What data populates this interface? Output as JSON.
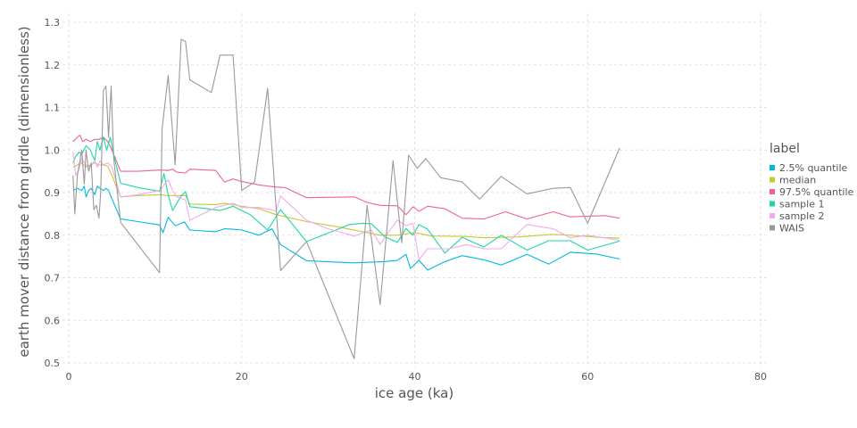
{
  "chart_data": {
    "type": "line",
    "xlabel": "ice age (ka)",
    "ylabel": "earth mover distance from girdle (dimensionless)",
    "xlim": [
      0,
      80
    ],
    "ylim": [
      0.5,
      1.32
    ],
    "xticks": [
      0,
      20,
      40,
      60,
      80
    ],
    "yticks": [
      0.5,
      0.6,
      0.7,
      0.8,
      0.9,
      1.0,
      1.1,
      1.2,
      1.3
    ],
    "xtick_labels": [
      "0",
      "20",
      "40",
      "60",
      "80"
    ],
    "ytick_labels": [
      "0.5",
      "0.6",
      "0.7",
      "0.8",
      "0.9",
      "1.0",
      "1.1",
      "1.2",
      "1.3"
    ],
    "grid": true,
    "legend": {
      "title": "label",
      "position": "right"
    },
    "series": [
      {
        "name": "2.5% quantile",
        "color": "#00b8e0",
        "x": [
          0.5,
          1.0,
          1.5,
          1.8,
          2.0,
          2.3,
          2.6,
          3.0,
          3.3,
          3.6,
          4.0,
          4.3,
          4.6,
          5.0,
          6.0,
          8.0,
          10.5,
          10.9,
          11.5,
          12.3,
          13.4,
          14.0,
          17.0,
          18.0,
          19.0,
          20.0,
          22.0,
          23.5,
          24.5,
          27.5,
          33.0,
          35.5,
          36.5,
          38.0,
          39.0,
          39.5,
          40.5,
          41.5,
          43.5,
          45.5,
          48.0,
          50.0,
          53.0,
          55.5,
          58.0,
          61.0,
          63.7
        ],
        "y": [
          0.905,
          0.91,
          0.905,
          0.915,
          0.89,
          0.905,
          0.91,
          0.895,
          0.915,
          0.91,
          0.905,
          0.91,
          0.905,
          0.885,
          0.838,
          0.832,
          0.824,
          0.806,
          0.842,
          0.822,
          0.831,
          0.812,
          0.808,
          0.815,
          0.814,
          0.812,
          0.8,
          0.815,
          0.778,
          0.74,
          0.735,
          0.737,
          0.738,
          0.741,
          0.755,
          0.722,
          0.741,
          0.718,
          0.738,
          0.752,
          0.742,
          0.73,
          0.755,
          0.732,
          0.76,
          0.756,
          0.744
        ]
      },
      {
        "name": "median",
        "color": "#c8c832",
        "x": [
          0.5,
          1.0,
          1.5,
          2.0,
          2.5,
          3.0,
          3.5,
          4.0,
          4.5,
          5.0,
          6.0,
          8.0,
          10.5,
          11.5,
          13.5,
          14.0,
          17.0,
          18.0,
          20.0,
          22.0,
          24.0,
          27.5,
          31.0,
          34.0,
          36.0,
          38.0,
          40.0,
          42.0,
          46.0,
          48.0,
          52.0,
          56.0,
          58.0,
          62.0,
          63.7
        ],
        "y": [
          0.96,
          0.965,
          0.97,
          0.96,
          0.965,
          0.97,
          0.965,
          0.965,
          0.962,
          0.94,
          0.89,
          0.893,
          0.895,
          0.893,
          0.893,
          0.873,
          0.872,
          0.875,
          0.868,
          0.862,
          0.848,
          0.832,
          0.82,
          0.808,
          0.8,
          0.8,
          0.806,
          0.798,
          0.797,
          0.794,
          0.796,
          0.802,
          0.8,
          0.794,
          0.793
        ]
      },
      {
        "name": "97.5% quantile",
        "color": "#f0609a",
        "x": [
          0.5,
          1.0,
          1.3,
          1.6,
          2.0,
          2.5,
          3.0,
          3.5,
          4.0,
          4.5,
          5.0,
          6.0,
          8.0,
          10.5,
          11.5,
          12.0,
          12.5,
          13.5,
          14.0,
          17.0,
          18.0,
          19.0,
          20.0,
          22.0,
          24.0,
          25.0,
          27.5,
          33.0,
          34.5,
          36.0,
          38.0,
          39.0,
          39.8,
          40.5,
          41.5,
          43.5,
          45.5,
          48.0,
          50.5,
          53.0,
          56.0,
          58.0,
          62.0,
          63.7
        ],
        "y": [
          1.02,
          1.03,
          1.035,
          1.02,
          1.025,
          1.02,
          1.025,
          1.025,
          1.03,
          1.02,
          1.0,
          0.95,
          0.95,
          0.953,
          0.952,
          0.955,
          0.948,
          0.946,
          0.955,
          0.952,
          0.925,
          0.932,
          0.926,
          0.918,
          0.913,
          0.912,
          0.888,
          0.89,
          0.877,
          0.87,
          0.869,
          0.848,
          0.867,
          0.856,
          0.868,
          0.862,
          0.84,
          0.838,
          0.855,
          0.838,
          0.855,
          0.843,
          0.846,
          0.84
        ]
      },
      {
        "name": "sample 1",
        "color": "#1ed6a4",
        "x": [
          0.5,
          0.8,
          1.2,
          1.5,
          2.0,
          2.5,
          3.0,
          3.3,
          3.6,
          4.0,
          4.4,
          4.8,
          5.3,
          6.0,
          8.0,
          10.5,
          11.0,
          11.5,
          12.0,
          13.0,
          13.5,
          14.0,
          16.0,
          17.5,
          19.0,
          21.0,
          23.0,
          24.5,
          27.5,
          32.5,
          34.0,
          35.0,
          36.5,
          38.0,
          39.0,
          39.8,
          40.5,
          41.5,
          43.5,
          45.5,
          48.0,
          50.0,
          53.0,
          55.5,
          58.0,
          60.0,
          63.7
        ],
        "y": [
          0.97,
          0.985,
          0.995,
          0.99,
          1.01,
          1.0,
          0.975,
          1.02,
          1.0,
          1.03,
          1.0,
          1.03,
          0.98,
          0.922,
          0.912,
          0.903,
          0.945,
          0.895,
          0.858,
          0.892,
          0.902,
          0.867,
          0.862,
          0.858,
          0.868,
          0.848,
          0.812,
          0.86,
          0.785,
          0.825,
          0.828,
          0.827,
          0.797,
          0.783,
          0.816,
          0.8,
          0.825,
          0.814,
          0.758,
          0.795,
          0.772,
          0.8,
          0.765,
          0.787,
          0.787,
          0.765,
          0.786
        ]
      },
      {
        "name": "sample 2",
        "color": "#f0aaf0",
        "x": [
          0.5,
          0.8,
          1.2,
          1.5,
          2.0,
          2.5,
          3.0,
          3.3,
          3.6,
          4.0,
          4.5,
          5.0,
          6.0,
          8.0,
          10.5,
          11.5,
          12.0,
          12.5,
          13.5,
          14.0,
          17.0,
          18.0,
          19.0,
          20.0,
          22.0,
          24.0,
          24.5,
          27.5,
          30.0,
          33.0,
          35.0,
          36.0,
          37.0,
          38.0,
          39.0,
          39.8,
          40.5,
          41.5,
          44.0,
          46.0,
          48.0,
          50.0,
          53.0,
          56.0,
          58.0,
          60.0,
          63.7
        ],
        "y": [
          0.995,
          0.94,
          0.955,
          0.98,
          0.965,
          0.96,
          0.975,
          0.96,
          0.975,
          0.965,
          0.97,
          0.96,
          0.89,
          0.895,
          0.905,
          0.93,
          0.905,
          0.89,
          0.883,
          0.835,
          0.865,
          0.87,
          0.875,
          0.865,
          0.865,
          0.857,
          0.892,
          0.835,
          0.815,
          0.798,
          0.812,
          0.778,
          0.808,
          0.835,
          0.822,
          0.828,
          0.742,
          0.768,
          0.768,
          0.778,
          0.768,
          0.768,
          0.825,
          0.815,
          0.794,
          0.8,
          0.788
        ]
      },
      {
        "name": "WAIS",
        "color": "#999999",
        "x": [
          0.5,
          0.7,
          1.0,
          1.5,
          1.8,
          2.0,
          2.3,
          2.6,
          2.9,
          3.2,
          3.5,
          3.7,
          4.0,
          4.3,
          4.6,
          4.9,
          5.2,
          6.0,
          10.5,
          10.8,
          11.5,
          12.3,
          13.0,
          13.5,
          14.0,
          16.5,
          17.5,
          19.0,
          20.0,
          21.5,
          23.0,
          24.5,
          27.5,
          33.0,
          34.5,
          36.0,
          37.5,
          38.5,
          39.3,
          40.3,
          41.3,
          43.0,
          45.5,
          47.5,
          50.0,
          53.0,
          56.0,
          58.0,
          60.0,
          63.7
        ],
        "y": [
          0.94,
          0.85,
          0.94,
          1.0,
          0.92,
          1.0,
          0.95,
          0.97,
          0.86,
          0.87,
          0.84,
          0.9,
          1.14,
          1.15,
          1.03,
          1.15,
          0.98,
          0.83,
          0.712,
          1.05,
          1.175,
          0.965,
          1.26,
          1.255,
          1.165,
          1.135,
          1.223,
          1.223,
          0.905,
          0.925,
          1.145,
          0.717,
          0.785,
          0.51,
          0.87,
          0.637,
          0.975,
          0.782,
          0.988,
          0.957,
          0.98,
          0.935,
          0.925,
          0.885,
          0.938,
          0.897,
          0.91,
          0.912,
          0.828,
          1.005
        ]
      }
    ]
  }
}
